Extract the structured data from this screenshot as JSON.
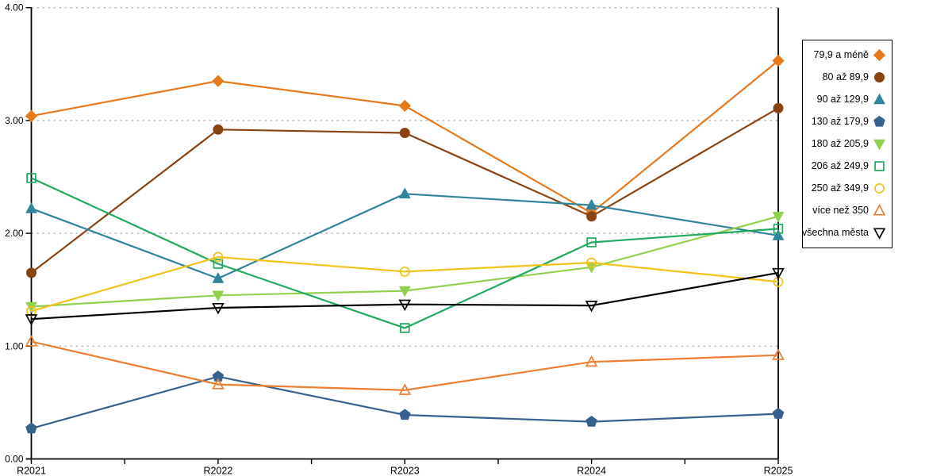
{
  "chart_data": {
    "type": "line",
    "title": "",
    "xlabel": "",
    "ylabel": "",
    "categories": [
      "R2021",
      "R2022",
      "R2023",
      "R2024",
      "R2025"
    ],
    "y_axis": {
      "min": 0,
      "max": 4,
      "tick_interval": 1,
      "tick_labels": [
        "0.00",
        "1.00",
        "2.00",
        "3.00",
        "4.00"
      ],
      "gridlines": "dotted",
      "gridline_color": "#ADADAD"
    },
    "legend_position": "right",
    "axis_color": "#000000",
    "series": [
      {
        "name": "79,9 a méně",
        "color": "#E8791D",
        "marker": "diamond",
        "fill": "filled",
        "values": [
          3.04,
          3.35,
          3.13,
          2.18,
          3.53
        ]
      },
      {
        "name": "80 až 89,9",
        "color": "#8A4413",
        "marker": "circle",
        "fill": "filled",
        "values": [
          1.65,
          2.92,
          2.89,
          2.15,
          3.11
        ]
      },
      {
        "name": "90 až 129,9",
        "color": "#31849B",
        "marker": "triangle-up",
        "fill": "filled",
        "values": [
          2.22,
          1.6,
          2.35,
          2.25,
          1.98
        ]
      },
      {
        "name": "130 až 179,9",
        "color": "#36618E",
        "marker": "pentagon",
        "fill": "filled",
        "values": [
          0.27,
          0.73,
          0.39,
          0.33,
          0.4
        ]
      },
      {
        "name": "180 až 205,9",
        "color": "#92D050",
        "marker": "triangle-down",
        "fill": "filled",
        "values": [
          1.35,
          1.45,
          1.49,
          1.7,
          2.15
        ]
      },
      {
        "name": "206 až 249,9",
        "color": "#21A95F",
        "marker": "square",
        "fill": "open",
        "values": [
          2.49,
          1.73,
          1.16,
          1.92,
          2.04
        ]
      },
      {
        "name": "250 až 349,9",
        "color": "#EFC319",
        "marker": "circle",
        "fill": "open",
        "values": [
          1.31,
          1.79,
          1.66,
          1.74,
          1.57
        ]
      },
      {
        "name": "více než 350",
        "color": "#ED7D31",
        "marker": "triangle-up",
        "fill": "open",
        "values": [
          1.04,
          0.66,
          0.61,
          0.86,
          0.92
        ]
      },
      {
        "name": "všechna města",
        "color": "#000000",
        "marker": "triangle-down",
        "fill": "open",
        "values": [
          1.24,
          1.34,
          1.37,
          1.36,
          1.65
        ]
      }
    ]
  }
}
